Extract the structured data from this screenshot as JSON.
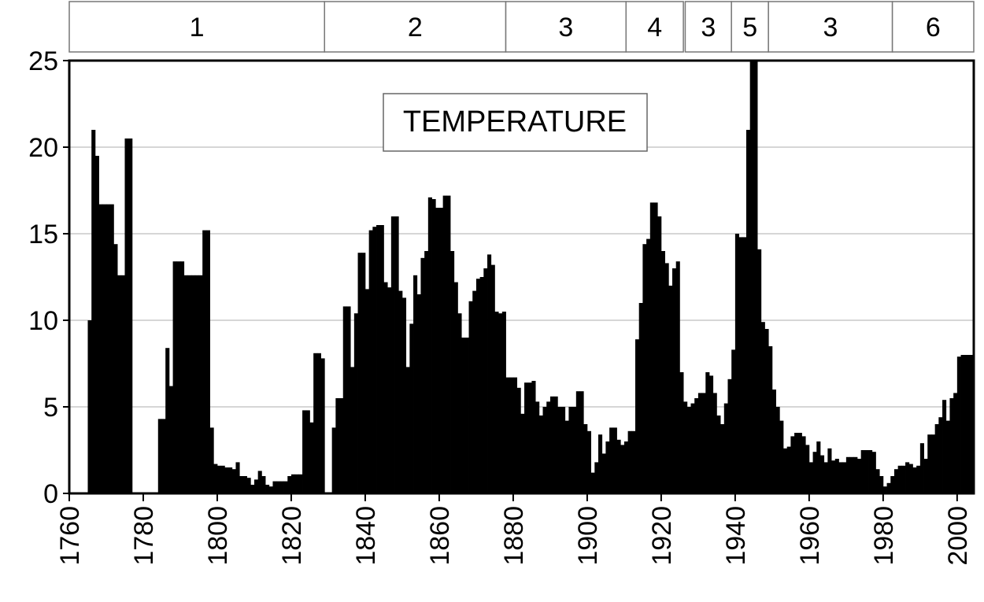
{
  "chart_data": {
    "type": "bar",
    "title": "TEMPERATURE",
    "color": "#000000",
    "grid": true,
    "xlim": [
      1760,
      2004.5
    ],
    "xticks": [
      1760,
      1780,
      1800,
      1820,
      1840,
      1860,
      1880,
      1900,
      1920,
      1940,
      1960,
      1980,
      2000
    ],
    "ylim": [
      0,
      25
    ],
    "yticks": [
      0,
      5,
      10,
      15,
      20,
      25
    ],
    "phases": [
      {
        "label": "1",
        "start": 1760,
        "end": 1829
      },
      {
        "label": "2",
        "start": 1829,
        "end": 1878
      },
      {
        "label": "3",
        "start": 1878,
        "end": 1910.5
      },
      {
        "label": "4",
        "start": 1910.5,
        "end": 1926
      },
      {
        "label": "3",
        "start": 1926.5,
        "end": 1939
      },
      {
        "label": "5",
        "start": 1939,
        "end": 1949
      },
      {
        "label": "3",
        "start": 1949,
        "end": 1982.5
      },
      {
        "label": "6",
        "start": 1982.5,
        "end": 2004.5
      }
    ],
    "x": [
      1760,
      1761,
      1762,
      1763,
      1764,
      1765,
      1766,
      1767,
      1768,
      1769,
      1770,
      1771,
      1772,
      1773,
      1774,
      1775,
      1776,
      1777,
      1778,
      1779,
      1780,
      1781,
      1782,
      1783,
      1784,
      1785,
      1786,
      1787,
      1788,
      1789,
      1790,
      1791,
      1792,
      1793,
      1794,
      1795,
      1796,
      1797,
      1798,
      1799,
      1800,
      1801,
      1802,
      1803,
      1804,
      1805,
      1806,
      1807,
      1808,
      1809,
      1810,
      1811,
      1812,
      1813,
      1814,
      1815,
      1816,
      1817,
      1818,
      1819,
      1820,
      1821,
      1822,
      1823,
      1824,
      1825,
      1826,
      1827,
      1828,
      1829,
      1830,
      1831,
      1832,
      1833,
      1834,
      1835,
      1836,
      1837,
      1838,
      1839,
      1840,
      1841,
      1842,
      1843,
      1844,
      1845,
      1846,
      1847,
      1848,
      1849,
      1850,
      1851,
      1852,
      1853,
      1854,
      1855,
      1856,
      1857,
      1858,
      1859,
      1860,
      1861,
      1862,
      1863,
      1864,
      1865,
      1866,
      1867,
      1868,
      1869,
      1870,
      1871,
      1872,
      1873,
      1874,
      1875,
      1876,
      1877,
      1878,
      1879,
      1880,
      1881,
      1882,
      1883,
      1884,
      1885,
      1886,
      1887,
      1888,
      1889,
      1890,
      1891,
      1892,
      1893,
      1894,
      1895,
      1896,
      1897,
      1898,
      1899,
      1900,
      1901,
      1902,
      1903,
      1904,
      1905,
      1906,
      1907,
      1908,
      1909,
      1910,
      1911,
      1912,
      1913,
      1914,
      1915,
      1916,
      1917,
      1918,
      1919,
      1920,
      1921,
      1922,
      1923,
      1924,
      1925,
      1926,
      1927,
      1928,
      1929,
      1930,
      1931,
      1932,
      1933,
      1934,
      1935,
      1936,
      1937,
      1938,
      1939,
      1940,
      1941,
      1942,
      1943,
      1944,
      1945,
      1946,
      1947,
      1948,
      1949,
      1950,
      1951,
      1952,
      1953,
      1954,
      1955,
      1956,
      1957,
      1958,
      1959,
      1960,
      1961,
      1962,
      1963,
      1964,
      1965,
      1966,
      1967,
      1968,
      1969,
      1970,
      1971,
      1972,
      1973,
      1974,
      1975,
      1976,
      1977,
      1978,
      1979,
      1980,
      1981,
      1982,
      1983,
      1984,
      1985,
      1986,
      1987,
      1988,
      1989,
      1990,
      1991,
      1992,
      1993,
      1994,
      1995,
      1996,
      1997,
      1998,
      1999,
      2000,
      2001,
      2002,
      2003,
      2004
    ],
    "values": [
      0,
      0,
      0,
      0,
      0,
      10,
      21,
      19.5,
      16.7,
      16.7,
      16.7,
      16.7,
      14.4,
      12.6,
      12.6,
      20.5,
      20.5,
      0,
      0,
      0,
      0,
      0,
      0,
      0,
      4.3,
      4.3,
      8.4,
      6.2,
      13.4,
      13.4,
      13.4,
      12.6,
      12.6,
      12.6,
      12.6,
      12.6,
      15.2,
      15.2,
      3.8,
      1.7,
      1.6,
      1.6,
      1.5,
      1.5,
      1.4,
      1.8,
      1.0,
      1.0,
      0.9,
      0.5,
      0.8,
      1.3,
      1.0,
      0.5,
      0.4,
      0.7,
      0.7,
      0.7,
      0.7,
      1.0,
      1.1,
      1.1,
      1.1,
      4.8,
      4.8,
      4.1,
      8.1,
      8.1,
      7.8,
      0,
      0,
      3.8,
      5.5,
      5.5,
      10.8,
      10.8,
      7.3,
      10.4,
      13.9,
      13.9,
      11.8,
      15.2,
      15.4,
      15.5,
      15.5,
      12.2,
      11.9,
      16.0,
      16.0,
      11.7,
      11.3,
      7.3,
      9.8,
      12.6,
      11.5,
      13.6,
      14.0,
      17.1,
      17.0,
      16.5,
      16.5,
      17.2,
      17.2,
      14.0,
      12.2,
      10.4,
      9.0,
      9.0,
      11.1,
      11.7,
      12.4,
      12.5,
      13.0,
      13.8,
      13.2,
      10.5,
      10.4,
      10.5,
      6.7,
      6.7,
      6.7,
      6.1,
      4.6,
      6.4,
      6.4,
      6.5,
      5.3,
      4.5,
      5.0,
      5.3,
      5.6,
      5.6,
      5.0,
      5.0,
      4.2,
      5.0,
      5.0,
      5.9,
      5.9,
      4.0,
      3.6,
      1.2,
      1.8,
      3.4,
      2.3,
      3.0,
      3.8,
      3.8,
      3.1,
      2.8,
      3.0,
      3.6,
      3.6,
      8.9,
      11.0,
      14.4,
      14.7,
      16.8,
      16.8,
      16.0,
      14.0,
      13.3,
      12.0,
      13.0,
      13.4,
      7.0,
      5.3,
      5.0,
      5.2,
      5.5,
      5.8,
      5.8,
      7.0,
      6.8,
      5.8,
      4.5,
      4.0,
      5.2,
      6.6,
      8.3,
      15.0,
      14.8,
      14.8,
      21.0,
      25.0,
      25.0,
      14.1,
      9.9,
      9.5,
      8.5,
      6.0,
      5.0,
      4.2,
      2.6,
      2.7,
      3.3,
      3.5,
      3.5,
      3.3,
      2.8,
      1.8,
      2.4,
      3.0,
      2.2,
      1.8,
      2.6,
      1.9,
      2.0,
      1.8,
      1.8,
      2.1,
      2.1,
      2.1,
      2.0,
      2.5,
      2.5,
      2.5,
      2.4,
      1.4,
      1.0,
      0.4,
      0.6,
      1.0,
      1.4,
      1.6,
      1.6,
      1.8,
      1.7,
      1.5,
      1.6,
      2.9,
      2.0,
      3.4,
      3.4,
      4.0,
      4.4,
      5.4,
      4.2,
      5.5,
      5.8,
      7.9,
      8.0,
      8.0,
      8.0,
      8.0
    ]
  }
}
